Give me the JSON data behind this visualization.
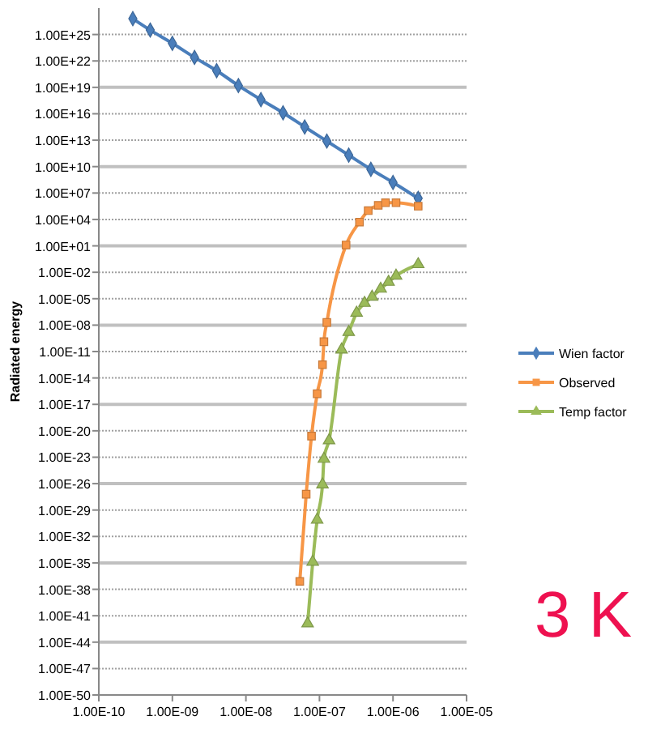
{
  "chart_data": {
    "type": "line",
    "ylabel": "Radiated energy",
    "log": "xy",
    "grid": "y",
    "legend": "right",
    "annotations": [
      "3 K"
    ],
    "xlim": [
      1e-10,
      1e-05
    ],
    "ylim": [
      1e-50,
      1e+28
    ],
    "xticks": [
      {
        "value": 1e-10,
        "label": "1.00E-10"
      },
      {
        "value": 1e-09,
        "label": "1.00E-09"
      },
      {
        "value": 1e-08,
        "label": "1.00E-08"
      },
      {
        "value": 1e-07,
        "label": "1.00E-07"
      },
      {
        "value": 1e-06,
        "label": "1.00E-06"
      },
      {
        "value": 1e-05,
        "label": "1.00E-05"
      }
    ],
    "yticks": [
      {
        "value": 1e-50,
        "label": "1.00E-50"
      },
      {
        "value": 1e-47,
        "label": "1.00E-47"
      },
      {
        "value": 1e-44,
        "label": "1.00E-44"
      },
      {
        "value": 1e-41,
        "label": "1.00E-41"
      },
      {
        "value": 1e-38,
        "label": "1.00E-38"
      },
      {
        "value": 1e-35,
        "label": "1.00E-35"
      },
      {
        "value": 1e-32,
        "label": "1.00E-32"
      },
      {
        "value": 1e-29,
        "label": "1.00E-29"
      },
      {
        "value": 1e-26,
        "label": "1.00E-26"
      },
      {
        "value": 1e-23,
        "label": "1.00E-23"
      },
      {
        "value": 1e-20,
        "label": "1.00E-20"
      },
      {
        "value": 1e-17,
        "label": "1.00E-17"
      },
      {
        "value": 1e-14,
        "label": "1.00E-14"
      },
      {
        "value": 1e-11,
        "label": "1.00E-11"
      },
      {
        "value": 1e-08,
        "label": "1.00E-08"
      },
      {
        "value": 1e-05,
        "label": "1.00E-05"
      },
      {
        "value": 0.01,
        "label": "1.00E-02"
      },
      {
        "value": 10,
        "label": "1.00E+01"
      },
      {
        "value": 10000.0,
        "label": "1.00E+04"
      },
      {
        "value": 10000000.0,
        "label": "1.00E+07"
      },
      {
        "value": 10000000000.0,
        "label": "1.00E+10"
      },
      {
        "value": 10000000000000.0,
        "label": "1.00E+13"
      },
      {
        "value": 1e+16,
        "label": "1.00E+16"
      },
      {
        "value": 1e+19,
        "label": "1.00E+19"
      },
      {
        "value": 1e+22,
        "label": "1.00E+22"
      },
      {
        "value": 1e+25,
        "label": "1.00E+25"
      }
    ],
    "series": [
      {
        "name": "Wien factor",
        "color": "#4a7ebb",
        "marker": "diamond",
        "x": [
          2.9e-10,
          5e-10,
          1e-09,
          2e-09,
          4e-09,
          7.9e-09,
          1.6e-08,
          3.2e-08,
          6.3e-08,
          1.26e-07,
          2.5e-07,
          5e-07,
          1e-06,
          2.2e-06
        ],
        "values": [
          6.3e+26,
          3.2e+25,
          1e+24,
          2.5e+22,
          7.9e+20,
          1.6e+19,
          4e+17,
          1.3e+16,
          320000000000000.0,
          7900000000000.0,
          200000000000.0,
          5000000000.0,
          160000000.0,
          2500000.0
        ]
      },
      {
        "name": "Observed",
        "color": "#f79646",
        "marker": "square",
        "x": [
          5.4e-08,
          6.6e-08,
          7.8e-08,
          9.3e-08,
          1.1e-07,
          1.15e-07,
          1.26e-07,
          2.3e-07,
          3.5e-07,
          4.6e-07,
          6.3e-07,
          7.9e-07,
          1.1e-06,
          2.2e-06
        ],
        "values": [
          7.9e-38,
          6.3e-28,
          2.5e-21,
          1.6e-16,
          3.2e-13,
          1.3e-10,
          2e-08,
          12.6,
          5000,
          100000.0,
          400000.0,
          790000.0,
          790000.0,
          320000.0
        ]
      },
      {
        "name": "Temp factor",
        "color": "#9bbb59",
        "marker": "triangle",
        "x": [
          6.9e-08,
          8.1e-08,
          9.3e-08,
          1.1e-07,
          1.15e-07,
          1.35e-07,
          2e-07,
          2.5e-07,
          3.2e-07,
          4.1e-07,
          5.2e-07,
          6.8e-07,
          8.7e-07,
          1.1e-06,
          2.2e-06
        ],
        "values": [
          1.3e-42,
          1.3e-35,
          7.9e-31,
          7.9e-27,
          6.3e-24,
          7.9e-22,
          1.6e-11,
          1.6e-09,
          2.5e-07,
          3.2e-06,
          1.6e-05,
          0.00013,
          0.00079,
          0.004,
          0.079
        ]
      }
    ]
  }
}
